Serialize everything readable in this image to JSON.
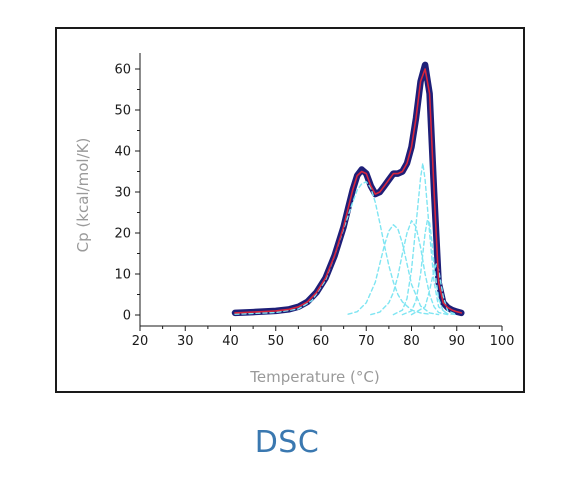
{
  "caption": "DSC",
  "colors": {
    "measured": "#1e1f78",
    "fit": "#d7263d",
    "components": "#7fe5f2",
    "axis": "#1a1a1a",
    "axis_title": "#9a9a9a",
    "caption": "#3a78b0"
  },
  "chart_data": {
    "type": "line",
    "title": "",
    "xlabel": "Temperature (°C)",
    "ylabel": "Cp (kcal/mol/K)",
    "xlim": [
      20,
      100
    ],
    "ylim": [
      -2,
      64
    ],
    "x_ticks": [
      20,
      30,
      40,
      50,
      60,
      70,
      80,
      90,
      100
    ],
    "y_ticks": [
      0,
      10,
      20,
      30,
      40,
      50,
      60
    ],
    "grid": false,
    "legend": "none",
    "series": [
      {
        "role": "measured",
        "style": "thick-dark-line",
        "x": [
          41,
          45,
          50,
          53,
          55,
          57,
          59,
          61,
          63,
          65,
          66,
          67,
          68,
          69,
          70,
          71,
          72,
          73,
          74,
          75,
          76,
          77,
          78,
          79,
          80,
          81,
          82,
          83,
          84,
          85,
          86,
          87,
          88,
          89,
          90,
          91
        ],
        "y": [
          0.5,
          0.7,
          1.0,
          1.4,
          2.0,
          3.2,
          5.5,
          9.0,
          14.5,
          21.5,
          26.0,
          30.5,
          34.0,
          35.5,
          34.5,
          31.5,
          29.5,
          30.0,
          31.5,
          33.0,
          34.5,
          34.5,
          35.0,
          37.0,
          41.0,
          48.0,
          57.0,
          61.0,
          54.0,
          30.0,
          8.0,
          3.0,
          1.8,
          1.2,
          0.8,
          0.5
        ]
      },
      {
        "role": "fit",
        "style": "thin-red-line",
        "x": [
          41,
          45,
          50,
          53,
          55,
          57,
          59,
          61,
          63,
          65,
          66,
          67,
          68,
          69,
          70,
          71,
          72,
          73,
          74,
          75,
          76,
          77,
          78,
          79,
          80,
          81,
          82,
          83,
          84,
          85,
          86,
          87,
          88,
          89,
          90,
          91
        ],
        "y": [
          0.5,
          0.7,
          1.0,
          1.4,
          2.0,
          3.2,
          5.5,
          9.0,
          14.5,
          21.5,
          26.0,
          30.5,
          34.0,
          35.0,
          34.5,
          31.5,
          29.5,
          30.0,
          31.5,
          33.0,
          34.5,
          34.5,
          35.0,
          37.0,
          41.0,
          48.0,
          57.0,
          60.0,
          54.0,
          30.0,
          8.0,
          3.0,
          1.8,
          1.2,
          0.8,
          0.5
        ]
      },
      {
        "role": "component",
        "style": "dashed",
        "x": [
          41,
          50,
          55,
          58,
          61,
          63,
          65,
          67,
          68,
          69,
          70,
          71,
          72,
          73,
          74,
          75,
          76,
          77,
          78,
          80,
          82,
          84
        ],
        "y": [
          0.2,
          0.6,
          1.5,
          3.5,
          8.5,
          14.5,
          21.0,
          27.5,
          30.5,
          32.0,
          32.5,
          31.0,
          27.5,
          22.5,
          17.0,
          12.0,
          8.0,
          5.0,
          3.2,
          1.2,
          0.5,
          0.2
        ]
      },
      {
        "role": "component",
        "style": "dashed",
        "x": [
          66,
          68,
          70,
          72,
          73,
          74,
          75,
          76,
          77,
          78,
          79,
          80,
          82,
          84,
          86
        ],
        "y": [
          0.2,
          0.8,
          3.0,
          8.0,
          12.5,
          17.0,
          20.5,
          22.0,
          21.0,
          17.5,
          12.5,
          7.5,
          2.2,
          0.5,
          0.1
        ]
      },
      {
        "role": "component",
        "style": "dashed",
        "x": [
          71,
          73,
          75,
          76,
          77,
          78,
          79,
          80,
          81,
          82,
          83,
          84,
          85,
          86,
          88
        ],
        "y": [
          0.1,
          0.7,
          3.0,
          5.5,
          9.5,
          15.0,
          20.0,
          23.0,
          21.5,
          16.5,
          10.0,
          5.0,
          2.0,
          0.6,
          0.1
        ]
      },
      {
        "role": "component",
        "style": "dashed",
        "x": [
          76,
          78,
          79,
          80,
          81,
          82,
          82.5,
          83,
          84,
          85,
          86,
          88
        ],
        "y": [
          0.1,
          1.2,
          4.0,
          11.0,
          22.0,
          33.5,
          37.0,
          33.0,
          20.0,
          8.0,
          2.0,
          0.2
        ]
      },
      {
        "role": "component",
        "style": "dashed",
        "x": [
          78,
          80,
          81,
          82,
          83,
          83.5,
          84,
          84.5,
          85,
          86,
          87,
          88,
          90
        ],
        "y": [
          0.1,
          1.0,
          3.5,
          10.0,
          20.0,
          23.0,
          22.5,
          18.0,
          12.0,
          4.0,
          1.0,
          0.3,
          0.1
        ]
      },
      {
        "role": "component",
        "style": "dashed",
        "x": [
          80,
          83,
          84,
          85,
          85.5,
          86,
          87,
          88,
          90
        ],
        "y": [
          0.1,
          2.0,
          6.0,
          11.0,
          12.5,
          11.0,
          4.5,
          1.0,
          0.1
        ]
      }
    ]
  }
}
